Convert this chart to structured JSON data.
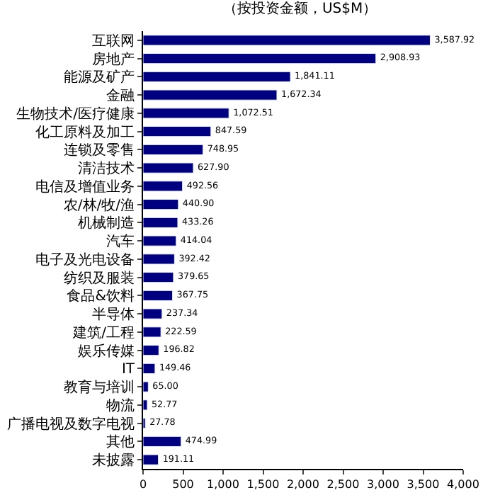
{
  "chart_data": {
    "type": "bar",
    "orientation": "horizontal",
    "title": "（按投资金额，US$M）",
    "categories": [
      "互联网",
      "房地产",
      "能源及矿产",
      "金融",
      "生物技术/医疗健康",
      "化工原料及加工",
      "连锁及零售",
      "清洁技术",
      "电信及增值业务",
      "农/林/牧/渔",
      "机械制造",
      "汽车",
      "电子及光电设备",
      "纺织及服装",
      "食品&饮料",
      "半导体",
      "建筑/工程",
      "娱乐传媒",
      "IT",
      "教育与培训",
      "物流",
      "广播电视及数字电视",
      "其他",
      "未披露"
    ],
    "values": [
      3587.92,
      2908.93,
      1841.11,
      1672.34,
      1072.51,
      847.59,
      748.95,
      627.9,
      492.56,
      440.9,
      433.26,
      414.04,
      392.42,
      379.65,
      367.75,
      237.34,
      222.59,
      196.82,
      149.46,
      65.0,
      52.77,
      27.78,
      474.99,
      191.11
    ],
    "value_labels": [
      "3,587.92",
      "2,908.93",
      "1,841.11",
      "1,672.34",
      "1,072.51",
      "847.59",
      "748.95",
      "627.90",
      "492.56",
      "440.90",
      "433.26",
      "414.04",
      "392.42",
      "379.65",
      "367.75",
      "237.34",
      "222.59",
      "196.82",
      "149.46",
      "65.00",
      "52.77",
      "27.78",
      "474.99",
      "191.11"
    ],
    "color": "#000080",
    "xlim": [
      0,
      4000
    ],
    "xticks": [
      {
        "value": 0,
        "label": "0"
      },
      {
        "value": 500,
        "label": "500"
      },
      {
        "value": 1000,
        "label": "1,000"
      },
      {
        "value": 1500,
        "label": "1,500"
      },
      {
        "value": 2000,
        "label": "2,000"
      },
      {
        "value": 2500,
        "label": "2,500"
      },
      {
        "value": 3000,
        "label": "3,000"
      },
      {
        "value": 3500,
        "label": "3,500"
      },
      {
        "value": 4000,
        "label": "4,000"
      }
    ],
    "legend": false
  }
}
